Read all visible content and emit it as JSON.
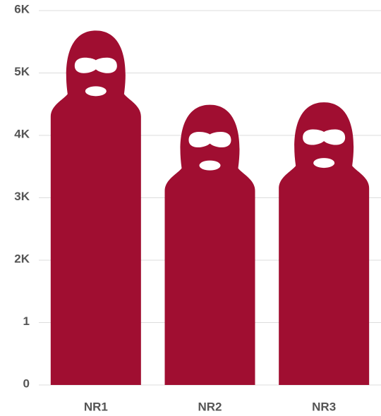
{
  "chart_data": {
    "type": "pictogram-bar",
    "categories": [
      "NR1",
      "NR2",
      "NR3"
    ],
    "values": [
      5680,
      4490,
      4530
    ],
    "color": "#a00e31",
    "ylim": [
      0,
      6000
    ],
    "yticks": [
      0,
      {
        "value": 1000,
        "label": "1"
      },
      {
        "value": 2000,
        "label": "2K"
      },
      {
        "value": 3000,
        "label": "3K"
      },
      {
        "value": 4000,
        "label": "4K"
      },
      {
        "value": 5000,
        "label": "5K"
      },
      {
        "value": 6000,
        "label": "6K"
      }
    ],
    "grid": true
  }
}
